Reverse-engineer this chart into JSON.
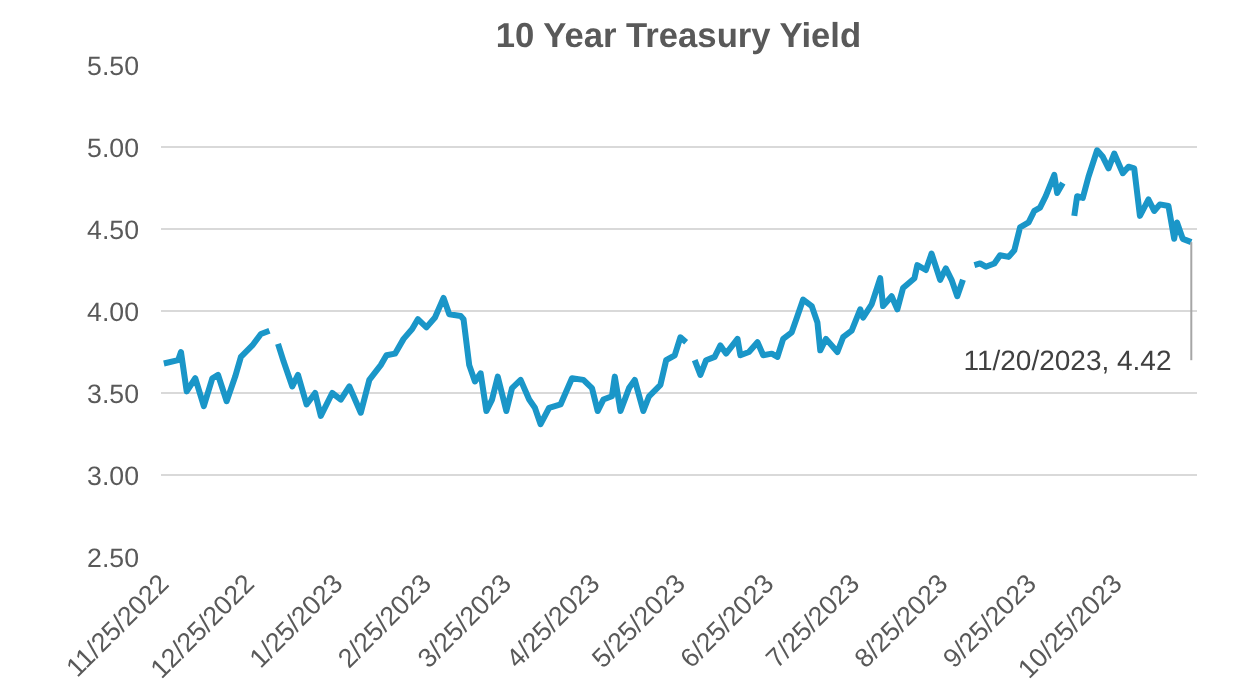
{
  "chart_data": {
    "type": "line",
    "title": "10 Year Treasury Yield",
    "x": [
      "2022-11-25",
      "2022-11-30",
      "2022-12-01",
      "2022-12-03",
      "2022-12-06",
      "2022-12-09",
      "2022-12-12",
      "2022-12-14",
      "2022-12-17",
      "2022-12-20",
      "2022-12-22",
      "2022-12-26",
      "2022-12-29",
      "2023-01-01",
      "2023-01-02",
      "2023-01-04",
      "2023-01-06",
      "2023-01-09",
      "2023-01-11",
      "2023-01-14",
      "2023-01-17",
      "2023-01-19",
      "2023-01-23",
      "2023-01-26",
      "2023-01-29",
      "2023-02-02",
      "2023-02-05",
      "2023-02-09",
      "2023-02-11",
      "2023-02-14",
      "2023-02-17",
      "2023-02-20",
      "2023-02-22",
      "2023-02-25",
      "2023-02-28",
      "2023-03-03",
      "2023-03-05",
      "2023-03-09",
      "2023-03-10",
      "2023-03-12",
      "2023-03-14",
      "2023-03-16",
      "2023-03-18",
      "2023-03-20",
      "2023-03-22",
      "2023-03-25",
      "2023-03-27",
      "2023-03-30",
      "2023-04-02",
      "2023-04-04",
      "2023-04-06",
      "2023-04-09",
      "2023-04-13",
      "2023-04-17",
      "2023-04-21",
      "2023-04-24",
      "2023-04-26",
      "2023-04-28",
      "2023-05-01",
      "2023-05-02",
      "2023-05-04",
      "2023-05-07",
      "2023-05-09",
      "2023-05-12",
      "2023-05-14",
      "2023-05-18",
      "2023-05-20",
      "2023-05-23",
      "2023-05-25",
      "2023-05-27",
      "2023-05-29",
      "2023-05-30",
      "2023-06-01",
      "2023-06-03",
      "2023-06-06",
      "2023-06-08",
      "2023-06-10",
      "2023-06-14",
      "2023-06-15",
      "2023-06-18",
      "2023-06-21",
      "2023-06-23",
      "2023-06-26",
      "2023-06-28",
      "2023-06-30",
      "2023-07-03",
      "2023-07-05",
      "2023-07-07",
      "2023-07-10",
      "2023-07-12",
      "2023-07-13",
      "2023-07-15",
      "2023-07-19",
      "2023-07-21",
      "2023-07-24",
      "2023-07-27",
      "2023-07-28",
      "2023-07-31",
      "2023-08-03",
      "2023-08-04",
      "2023-08-07",
      "2023-08-09",
      "2023-08-11",
      "2023-08-15",
      "2023-08-16",
      "2023-08-19",
      "2023-08-21",
      "2023-08-24",
      "2023-08-26",
      "2023-08-28",
      "2023-08-30",
      "2023-09-01",
      "2023-09-02",
      "2023-09-05",
      "2023-09-07",
      "2023-09-09",
      "2023-09-12",
      "2023-09-14",
      "2023-09-17",
      "2023-09-19",
      "2023-09-21",
      "2023-09-24",
      "2023-09-26",
      "2023-09-28",
      "2023-09-30",
      "2023-10-03",
      "2023-10-04",
      "2023-10-06",
      "2023-10-08",
      "2023-10-10",
      "2023-10-11",
      "2023-10-13",
      "2023-10-15",
      "2023-10-18",
      "2023-10-20",
      "2023-10-22",
      "2023-10-24",
      "2023-10-27",
      "2023-10-29",
      "2023-10-31",
      "2023-11-02",
      "2023-11-05",
      "2023-11-07",
      "2023-11-09",
      "2023-11-12",
      "2023-11-14",
      "2023-11-15",
      "2023-11-17",
      "2023-11-20"
    ],
    "series": [
      {
        "color": "#1a96c8",
        "values": [
          3.68,
          3.7,
          3.75,
          3.51,
          3.59,
          3.42,
          3.59,
          3.61,
          3.45,
          3.6,
          3.72,
          3.79,
          3.86,
          3.88,
          null,
          3.8,
          3.69,
          3.54,
          3.61,
          3.43,
          3.5,
          3.36,
          3.5,
          3.46,
          3.54,
          3.38,
          3.58,
          3.67,
          3.73,
          3.74,
          3.83,
          3.89,
          3.95,
          3.9,
          3.96,
          4.08,
          3.98,
          3.97,
          3.95,
          3.67,
          3.57,
          3.62,
          3.39,
          3.46,
          3.6,
          3.39,
          3.53,
          3.58,
          3.46,
          3.41,
          3.31,
          3.41,
          3.43,
          3.59,
          3.58,
          3.53,
          3.39,
          3.46,
          3.48,
          3.6,
          3.39,
          3.53,
          3.58,
          3.39,
          3.48,
          3.55,
          3.7,
          3.73,
          3.84,
          3.81,
          null,
          3.7,
          3.61,
          3.7,
          3.72,
          3.79,
          3.74,
          3.83,
          3.73,
          3.75,
          3.81,
          3.73,
          3.74,
          3.72,
          3.83,
          3.87,
          3.97,
          4.07,
          4.03,
          3.93,
          3.76,
          3.83,
          3.75,
          3.84,
          3.88,
          4.01,
          3.96,
          4.04,
          4.2,
          4.03,
          4.09,
          4.01,
          4.14,
          4.2,
          4.28,
          4.25,
          4.35,
          4.19,
          4.26,
          4.19,
          4.09,
          4.19,
          null,
          4.28,
          4.29,
          4.27,
          4.29,
          4.34,
          4.33,
          4.37,
          4.51,
          4.54,
          4.61,
          4.63,
          4.7,
          4.83,
          4.72,
          4.78,
          null,
          4.58,
          4.7,
          4.69,
          4.82,
          4.98,
          4.94,
          4.87,
          4.96,
          4.84,
          4.88,
          4.87,
          4.58,
          4.68,
          4.61,
          4.65,
          4.64,
          4.44,
          4.54,
          4.44,
          4.42
        ]
      }
    ],
    "xlim": [
      "2022-11-24",
      "2023-11-22"
    ],
    "xticks": [
      {
        "value": "2022-11-25",
        "label": "11/25/2022"
      },
      {
        "value": "2022-12-25",
        "label": "12/25/2022"
      },
      {
        "value": "2023-01-25",
        "label": "1/25/2023"
      },
      {
        "value": "2023-02-25",
        "label": "2/25/2023"
      },
      {
        "value": "2023-03-25",
        "label": "3/25/2023"
      },
      {
        "value": "2023-04-25",
        "label": "4/25/2023"
      },
      {
        "value": "2023-05-25",
        "label": "5/25/2023"
      },
      {
        "value": "2023-06-25",
        "label": "6/25/2023"
      },
      {
        "value": "2023-07-25",
        "label": "7/25/2023"
      },
      {
        "value": "2023-08-25",
        "label": "8/25/2023"
      },
      {
        "value": "2023-09-25",
        "label": "9/25/2023"
      },
      {
        "value": "2023-10-25",
        "label": "10/25/2023"
      }
    ],
    "ylim": [
      2.5,
      5.5
    ],
    "yticks": [
      {
        "value": 2.5,
        "label": "2.50"
      },
      {
        "value": 3.0,
        "label": "3.00"
      },
      {
        "value": 3.5,
        "label": "3.50"
      },
      {
        "value": 4.0,
        "label": "4.00"
      },
      {
        "value": 4.5,
        "label": "4.50"
      },
      {
        "value": 5.0,
        "label": "5.00"
      },
      {
        "value": 5.5,
        "label": "5.50"
      }
    ],
    "grid": "y",
    "annotations": [
      {
        "text": "11/20/2023,  4.42",
        "x": "2023-11-20",
        "y": 4.42
      }
    ]
  }
}
